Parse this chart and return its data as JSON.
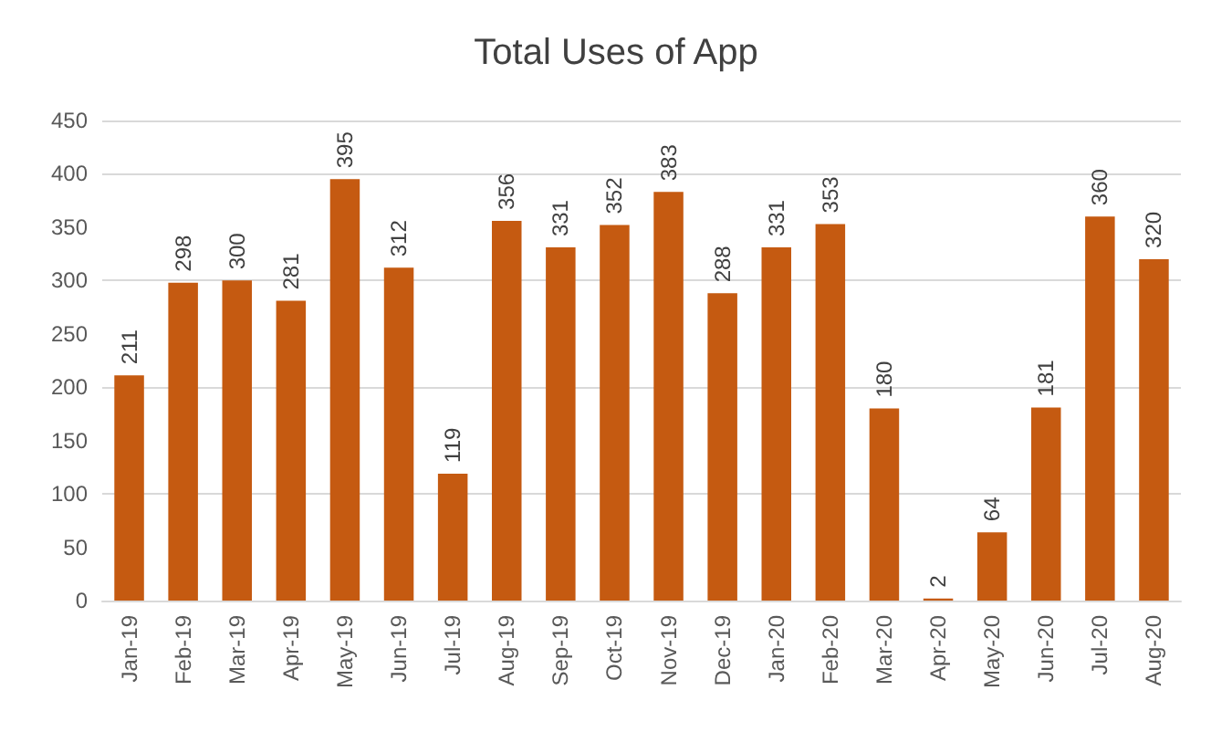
{
  "chart_data": {
    "type": "bar",
    "title": "Total Uses of App",
    "categories": [
      "Jan-19",
      "Feb-19",
      "Mar-19",
      "Apr-19",
      "May-19",
      "Jun-19",
      "Jul-19",
      "Aug-19",
      "Sep-19",
      "Oct-19",
      "Nov-19",
      "Dec-19",
      "Jan-20",
      "Feb-20",
      "Mar-20",
      "Apr-20",
      "May-20",
      "Jun-20",
      "Jul-20",
      "Aug-20"
    ],
    "values": [
      211,
      298,
      300,
      281,
      395,
      312,
      119,
      356,
      331,
      352,
      383,
      288,
      331,
      353,
      180,
      2,
      64,
      181,
      360,
      320
    ],
    "color": "#c55a11",
    "ylim": [
      0,
      450
    ],
    "yticks": [
      0,
      50,
      100,
      150,
      200,
      250,
      300,
      350,
      400,
      450
    ],
    "grid": "y",
    "data_labels": true
  }
}
